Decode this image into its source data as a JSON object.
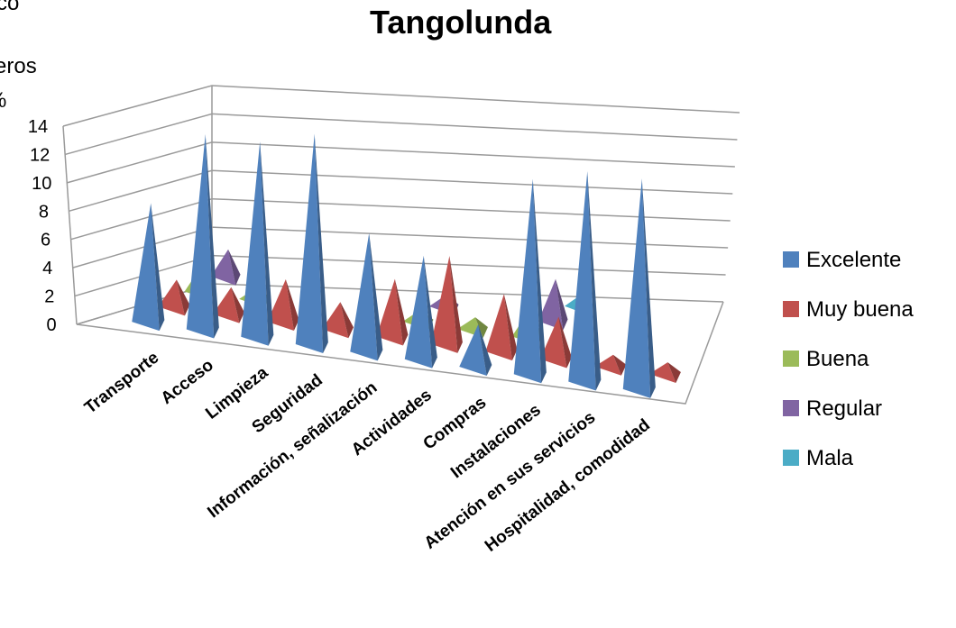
{
  "corner_text": [
    "co",
    "eros",
    "%"
  ],
  "chart_data": {
    "type": "bar",
    "title": "Tangolunda",
    "xlabel": "",
    "ylabel": "",
    "ylim": [
      0,
      14
    ],
    "y_ticks": [
      "0",
      "2",
      "4",
      "6",
      "8",
      "10",
      "12",
      "14"
    ],
    "categories": [
      "Transporte",
      "Acceso",
      "Limpieza",
      "Seguridad",
      "Información, señalización",
      "Actividades",
      "Compras",
      "Instalaciones",
      "Atención en sus servicios",
      "Hospitalidad, comodidad"
    ],
    "series": [
      {
        "name": "Excelente",
        "color": "#4f81bd",
        "values": [
          8,
          13,
          13,
          14,
          8,
          7,
          3,
          13,
          14,
          14
        ]
      },
      {
        "name": "Muy buena",
        "color": "#c0504d",
        "values": [
          2,
          2,
          3,
          2,
          4,
          6,
          4,
          3,
          1,
          1
        ]
      },
      {
        "name": "Buena",
        "color": "#9bbb59",
        "values": [
          2,
          1,
          0,
          0,
          1,
          1,
          2,
          0,
          0,
          0
        ]
      },
      {
        "name": "Regular",
        "color": "#8064a2",
        "values": [
          2,
          0,
          0,
          0,
          1,
          0,
          3,
          0,
          0,
          0
        ]
      },
      {
        "name": "Mala",
        "color": "#4bacc6",
        "values": [
          0,
          0,
          0,
          0,
          0,
          0,
          1,
          0,
          0,
          0
        ]
      }
    ],
    "grid": true,
    "legend_position": "right",
    "style": "3d-pyramid"
  }
}
